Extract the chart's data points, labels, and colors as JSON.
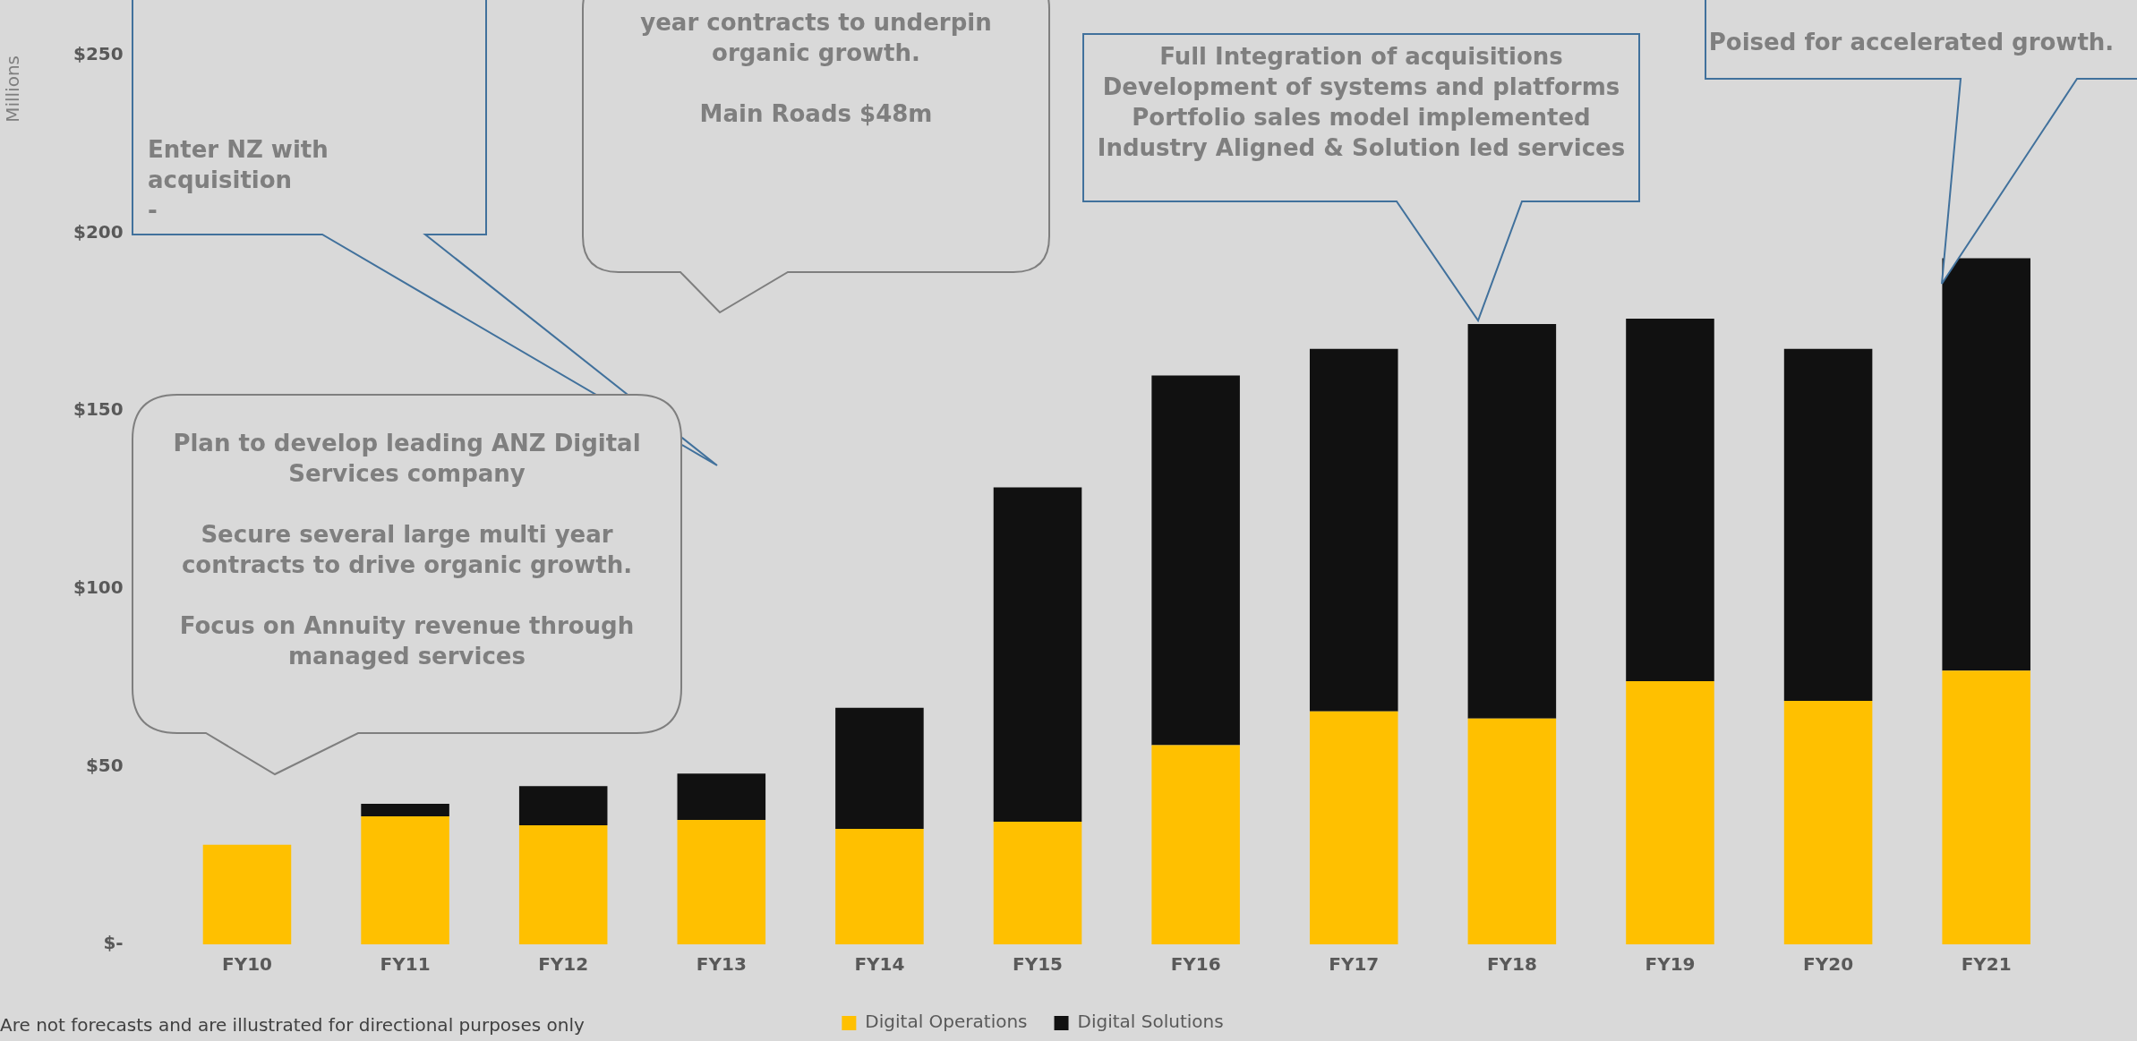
{
  "chart_data": {
    "type": "bar",
    "stacked": true,
    "ylabel": "Millions",
    "categories": [
      "FY10",
      "FY11",
      "FY12",
      "FY13",
      "FY14",
      "FY15",
      "FY16",
      "FY17",
      "FY18",
      "FY19",
      "FY20",
      "FY21"
    ],
    "series": [
      {
        "name": "Digital Operations",
        "color": "#ffc000",
        "values": [
          28,
          36,
          33.5,
          35,
          32.5,
          34.5,
          56,
          65.5,
          63.5,
          74,
          68.5,
          77
        ]
      },
      {
        "name": "Digital Solutions",
        "color": "#111111",
        "values": [
          0,
          3.5,
          11,
          13,
          34,
          94,
          104,
          102,
          111,
          102,
          99,
          116
        ]
      }
    ],
    "ylim": [
      0,
      250
    ],
    "yticks": [
      {
        "value": 0,
        "label": "$-"
      },
      {
        "value": 50,
        "label": "$50"
      },
      {
        "value": 100,
        "label": "$100"
      },
      {
        "value": 150,
        "label": "$150"
      },
      {
        "value": 200,
        "label": "$200"
      },
      {
        "value": 250,
        "label": "$250"
      }
    ],
    "legend": "bottom",
    "grid": false,
    "annotations": [
      "Enter NZ with acquisition\n-",
      "year contracts to underpin\norganic growth.\n\nMain Roads $48m",
      "Plan to develop leading ANZ Digital\nServices company\n\nSecure several large multi year\ncontracts to drive organic growth.\n\nFocus on Annuity revenue through\nmanaged services",
      "Full Integration of acquisitions\nDevelopment of systems and platforms\nPortfolio sales model implemented\nIndustry Aligned & Solution led services",
      "Poised for accelerated growth.",
      "Are not forecasts and are illustrated for directional purposes only"
    ]
  }
}
